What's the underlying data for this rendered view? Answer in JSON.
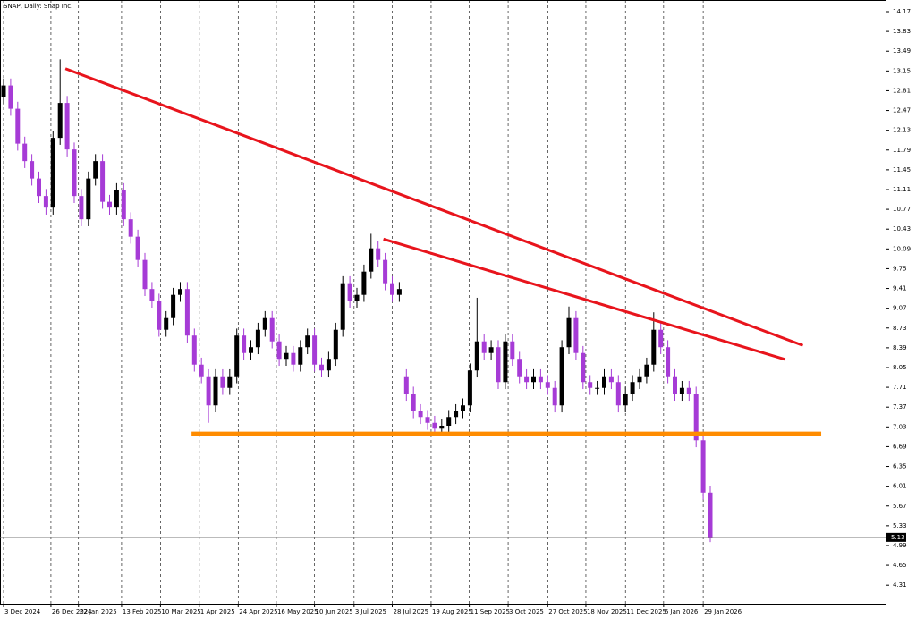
{
  "chart_data": {
    "type": "candlestick",
    "title": "SNAP, Daily: Snap Inc.",
    "ylim": [
      3.99,
      14.37
    ],
    "yticks": [
      4.31,
      4.65,
      4.99,
      5.33,
      5.67,
      6.01,
      6.35,
      6.69,
      7.03,
      7.37,
      7.71,
      8.05,
      8.39,
      8.73,
      9.07,
      9.41,
      9.75,
      10.09,
      10.43,
      10.77,
      11.11,
      11.45,
      11.79,
      12.13,
      12.47,
      12.81,
      13.15,
      13.49,
      13.83,
      14.17
    ],
    "xticks": [
      {
        "value": 0,
        "label": "3 Dec 2024"
      },
      {
        "value": 6.7,
        "label": "26 Dec 2024"
      },
      {
        "value": 10.6,
        "label": "22 Jan 2025"
      },
      {
        "value": 16.7,
        "label": "13 Feb 2025"
      },
      {
        "value": 22.2,
        "label": "10 Mar 2025"
      },
      {
        "value": 27.7,
        "label": "1 Apr 2025"
      },
      {
        "value": 33.2,
        "label": "24 Apr 2025"
      },
      {
        "value": 38.6,
        "label": "16 May 2025"
      },
      {
        "value": 44,
        "label": "10 Jun 2025"
      },
      {
        "value": 49.6,
        "label": "3 Jul 2025"
      },
      {
        "value": 55,
        "label": "28 Jul 2025"
      },
      {
        "value": 60.5,
        "label": "19 Aug 2025"
      },
      {
        "value": 65.9,
        "label": "11 Sep 2025"
      },
      {
        "value": 71.4,
        "label": "3 Oct 2025"
      },
      {
        "value": 77,
        "label": "27 Oct 2025"
      },
      {
        "value": 82.4,
        "label": "18 Nov 2025"
      },
      {
        "value": 88,
        "label": "11 Dec 2025"
      },
      {
        "value": 93.4,
        "label": "6 Jan 2026"
      },
      {
        "value": 99,
        "label": "29 Jan 2026"
      }
    ],
    "up_color": "#000000",
    "down_color": "#a63bd6",
    "open": [
      12.7,
      12.9,
      12.5,
      11.9,
      11.6,
      11.3,
      11.0,
      10.8,
      12.0,
      12.6,
      11.8,
      11.0,
      10.6,
      11.3,
      11.6,
      10.9,
      10.8,
      11.1,
      10.6,
      10.3,
      9.9,
      9.4,
      9.2,
      8.7,
      8.9,
      9.3,
      9.4,
      8.6,
      8.1,
      7.9,
      7.4,
      7.9,
      7.7,
      7.9,
      8.6,
      8.3,
      8.4,
      8.7,
      8.9,
      8.5,
      8.2,
      8.3,
      8.1,
      8.4,
      8.6,
      8.1,
      8.0,
      8.2,
      8.7,
      9.5,
      9.2,
      9.3,
      9.7,
      10.1,
      9.9,
      9.5,
      9.3,
      7.9,
      7.6,
      7.3,
      7.2,
      7.1,
      7.0,
      7.05,
      7.2,
      7.3,
      7.4,
      8.0,
      8.5,
      8.3,
      8.4,
      7.8,
      8.5,
      8.2,
      7.9,
      7.8,
      7.9,
      7.8,
      7.7,
      7.4,
      8.4,
      8.9,
      8.3,
      7.8,
      7.7,
      7.7,
      7.9,
      7.8,
      7.4,
      7.6,
      7.8,
      7.9,
      8.1,
      8.7,
      8.4,
      7.9,
      7.6,
      7.7,
      7.6,
      6.8,
      5.9
    ],
    "high": [
      13.02,
      13.02,
      12.62,
      12.02,
      11.72,
      11.42,
      11.12,
      12.12,
      13.35,
      12.72,
      11.92,
      11.12,
      11.42,
      11.72,
      11.72,
      11.02,
      11.22,
      11.22,
      10.72,
      10.42,
      10.02,
      9.52,
      9.32,
      9.02,
      9.42,
      9.52,
      9.52,
      8.72,
      8.22,
      8.02,
      8.02,
      8.02,
      8.02,
      8.72,
      8.72,
      8.52,
      8.82,
      9.02,
      9.02,
      8.62,
      8.42,
      8.42,
      8.52,
      8.72,
      8.72,
      8.22,
      8.32,
      8.82,
      9.62,
      9.62,
      9.42,
      9.82,
      10.35,
      10.22,
      10.02,
      9.62,
      9.52,
      8.02,
      7.72,
      7.42,
      7.32,
      7.22,
      7.17,
      7.32,
      7.42,
      7.52,
      8.12,
      9.25,
      8.62,
      8.52,
      8.52,
      8.62,
      8.62,
      8.32,
      8.02,
      8.02,
      8.02,
      7.92,
      7.82,
      8.52,
      9.1,
      9.02,
      8.42,
      7.92,
      7.82,
      8.02,
      8.02,
      7.92,
      7.72,
      7.92,
      8.02,
      8.22,
      9.0,
      8.82,
      8.52,
      8.02,
      7.82,
      7.82,
      7.72,
      6.92,
      6.02
    ],
    "low": [
      12.58,
      12.38,
      11.78,
      11.48,
      11.18,
      10.88,
      10.68,
      10.68,
      11.88,
      11.68,
      10.88,
      10.48,
      10.48,
      11.18,
      10.78,
      10.68,
      10.68,
      10.48,
      10.18,
      9.78,
      9.28,
      9.08,
      8.58,
      8.58,
      8.78,
      9.18,
      8.48,
      7.98,
      7.78,
      7.1,
      7.28,
      7.58,
      7.58,
      7.78,
      8.18,
      8.18,
      8.28,
      8.58,
      8.38,
      8.08,
      8.08,
      7.98,
      7.98,
      8.28,
      7.98,
      7.88,
      7.88,
      8.08,
      8.58,
      9.08,
      9.08,
      9.18,
      9.58,
      9.78,
      9.38,
      9.18,
      9.18,
      7.48,
      7.18,
      7.08,
      6.98,
      6.88,
      6.88,
      6.93,
      7.08,
      7.18,
      7.28,
      7.88,
      8.18,
      8.18,
      7.68,
      7.68,
      8.08,
      7.78,
      7.68,
      7.68,
      7.68,
      7.58,
      7.28,
      7.28,
      8.28,
      8.18,
      7.68,
      7.58,
      7.58,
      7.58,
      7.68,
      7.28,
      7.28,
      7.48,
      7.68,
      7.78,
      7.98,
      8.28,
      7.78,
      7.48,
      7.48,
      7.48,
      6.68,
      5.78,
      5.05
    ],
    "close": [
      12.9,
      12.5,
      11.9,
      11.6,
      11.3,
      11.0,
      10.8,
      12.0,
      12.6,
      11.8,
      11.0,
      10.6,
      11.3,
      11.6,
      10.9,
      10.8,
      11.1,
      10.6,
      10.3,
      9.9,
      9.4,
      9.2,
      8.7,
      8.9,
      9.3,
      9.4,
      8.6,
      8.1,
      7.9,
      7.4,
      7.9,
      7.7,
      7.9,
      8.6,
      8.3,
      8.4,
      8.7,
      8.9,
      8.5,
      8.2,
      8.3,
      8.1,
      8.4,
      8.6,
      8.1,
      8.0,
      8.2,
      8.7,
      9.5,
      9.2,
      9.3,
      9.7,
      10.1,
      9.9,
      9.5,
      9.3,
      9.4,
      7.6,
      7.3,
      7.2,
      7.1,
      7.0,
      7.05,
      7.2,
      7.3,
      7.4,
      8.0,
      8.5,
      8.3,
      8.4,
      7.8,
      8.5,
      8.2,
      7.9,
      7.8,
      7.9,
      7.8,
      7.7,
      7.4,
      8.4,
      8.9,
      8.3,
      7.8,
      7.7,
      7.7,
      7.9,
      7.8,
      7.4,
      7.6,
      7.8,
      7.9,
      8.1,
      8.7,
      8.4,
      7.9,
      7.6,
      7.7,
      7.6,
      6.8,
      5.9,
      5.13
    ],
    "last_price": 5.13,
    "lines": [
      {
        "color": "#e8141c",
        "width": 3,
        "points": [
          [
            8.75,
            13.19
          ],
          [
            113.1,
            8.43
          ]
        ]
      },
      {
        "color": "#e8141c",
        "width": 3,
        "points": [
          [
            53.75,
            10.26
          ],
          [
            110.6,
            8.19
          ]
        ]
      },
      {
        "color": "#ff8c00",
        "width": 5,
        "points": [
          [
            26.6,
            6.91
          ],
          [
            115.7,
            6.91
          ]
        ]
      }
    ]
  }
}
